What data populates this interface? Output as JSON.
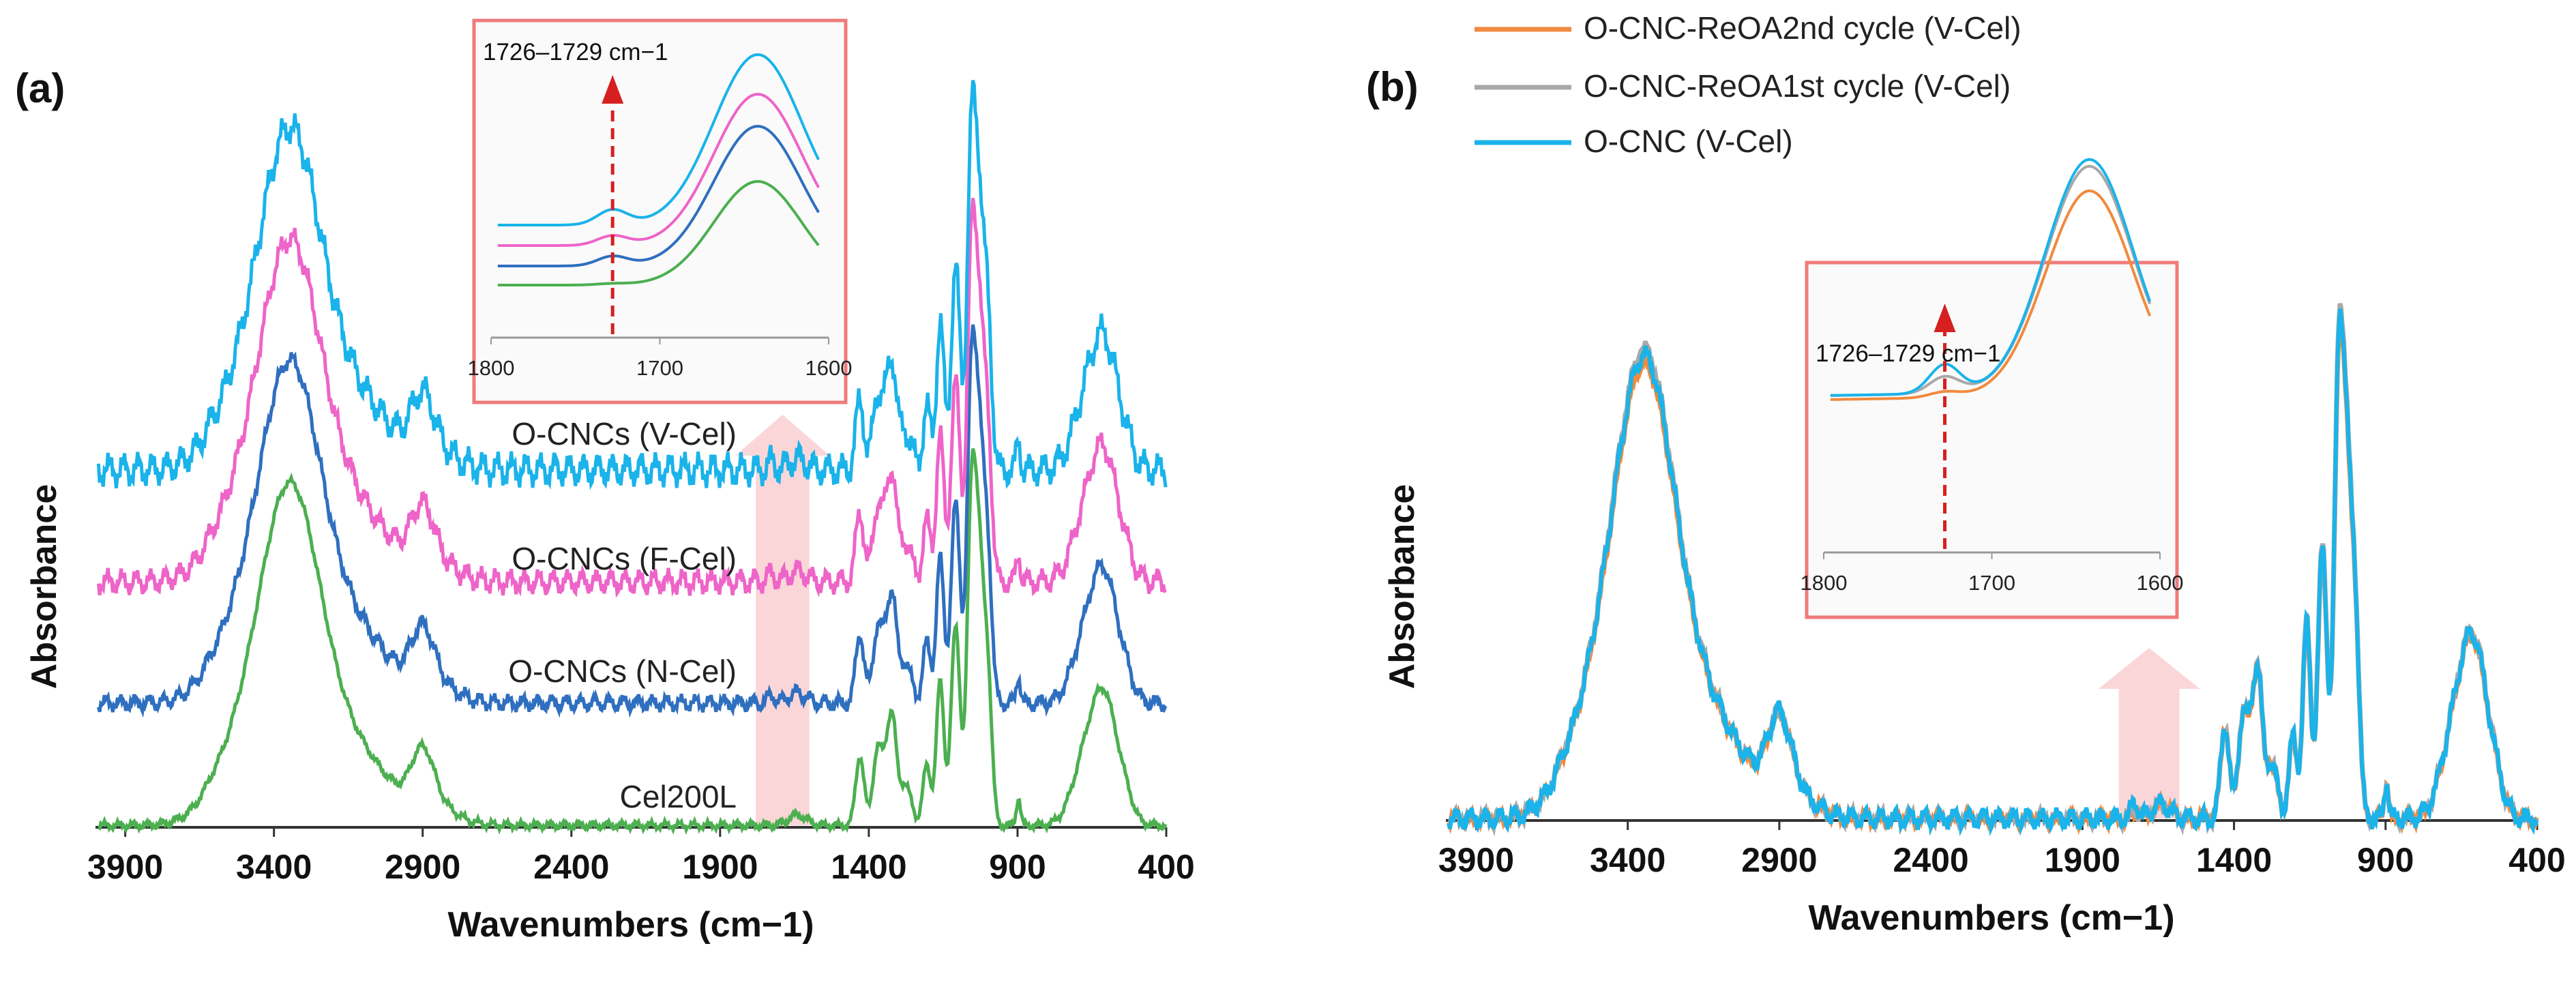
{
  "chart_data": [
    {
      "panel": "(a)",
      "type": "line",
      "xlabel": "Wavenumbers (cm−1)",
      "ylabel": "Absorbance",
      "xlim": [
        4000,
        400
      ],
      "xticks": [
        3900,
        3400,
        2900,
        2400,
        1900,
        1400,
        900,
        400
      ],
      "grid": false,
      "legend": "inline labels",
      "series": [
        {
          "name": "Cel200L",
          "label": "Cel200L",
          "color": "#4caf50",
          "offset": 0.0
        },
        {
          "name": "O-CNCs (N-Cel)",
          "label": "O-CNCs (N-Cel)",
          "color": "#2f6fbf",
          "offset": 0.55
        },
        {
          "name": "O-CNCs (F-Cel)",
          "label": "O-CNCs (F-Cel)",
          "color": "#ee64c8",
          "offset": 1.1
        },
        {
          "name": "O-CNCs (V-Cel)",
          "label": "O-CNCs (V-Cel)",
          "color": "#1ab3ea",
          "offset": 1.62
        }
      ],
      "highlight_region": [
        1780,
        1600
      ],
      "inset": {
        "annotation": "1726–1729 cm−1",
        "xlim": [
          1800,
          1600
        ],
        "xticks": [
          1800,
          1700,
          1600
        ],
        "marker_x": 1728
      }
    },
    {
      "panel": "(b)",
      "type": "line",
      "xlabel": "Wavenumbers (cm−1)",
      "ylabel": "Absorbance",
      "xlim": [
        4000,
        400
      ],
      "xticks": [
        3900,
        3400,
        2900,
        2400,
        1900,
        1400,
        900,
        400
      ],
      "grid": false,
      "legend": "top-left",
      "series": [
        {
          "name": "O-CNC-ReOA2nd cycle (V-Cel)",
          "color": "#f08a3e"
        },
        {
          "name": "O-CNC-ReOA1st cycle (V-Cel)",
          "color": "#a8a8a8"
        },
        {
          "name": "O-CNC (V-Cel)",
          "color": "#1ab3ea"
        }
      ],
      "highlight_region": [
        1780,
        1580
      ],
      "inset": {
        "annotation": "1726–1729 cm−1",
        "xlim": [
          1800,
          1600
        ],
        "xticks": [
          1800,
          1700,
          1600
        ],
        "marker_x": 1728
      }
    }
  ]
}
